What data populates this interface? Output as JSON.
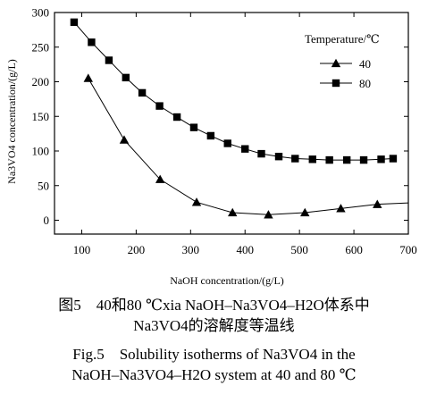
{
  "chart_data": {
    "type": "line",
    "xlabel": "NaOH concentration/(g/L)",
    "ylabel": "Na3VO4 concentration/(g/L)",
    "xlim": [
      50,
      700
    ],
    "ylim": [
      -20,
      300
    ],
    "xticks": [
      "100",
      "200",
      "300",
      "400",
      "500",
      "600",
      "700"
    ],
    "yticks": [
      "0",
      "50",
      "100",
      "150",
      "200",
      "250",
      "300"
    ],
    "grid": false,
    "legend": {
      "title": "Temperature/℃",
      "placement": "top-right"
    },
    "series": [
      {
        "name": "40",
        "marker": "triangle",
        "x": [
          112,
          178,
          244,
          311,
          377,
          443,
          510,
          576,
          643,
          700
        ],
        "y": [
          205,
          116,
          59,
          26,
          11,
          8,
          11,
          17,
          23,
          25
        ]
      },
      {
        "name": "80",
        "marker": "square",
        "x": [
          86,
          118,
          150,
          181,
          211,
          243,
          275,
          306,
          337,
          368,
          400,
          430,
          462,
          492,
          524,
          555,
          587,
          618,
          650,
          672
        ],
        "y": [
          286,
          257,
          231,
          206,
          184,
          165,
          149,
          134,
          122,
          111,
          103,
          96,
          92,
          89,
          88,
          87,
          87,
          87,
          88,
          89
        ]
      }
    ]
  },
  "caption": {
    "line1": "图5　40和80 ℃xia NaOH–Na3VO4–H2O体系中",
    "line2": "Na3VO4的溶解度等温线",
    "line3": "Fig.5　Solubility isotherms of Na3VO4 in the",
    "line4": "NaOH–Na3VO4–H2O system at 40 and 80 ℃"
  }
}
